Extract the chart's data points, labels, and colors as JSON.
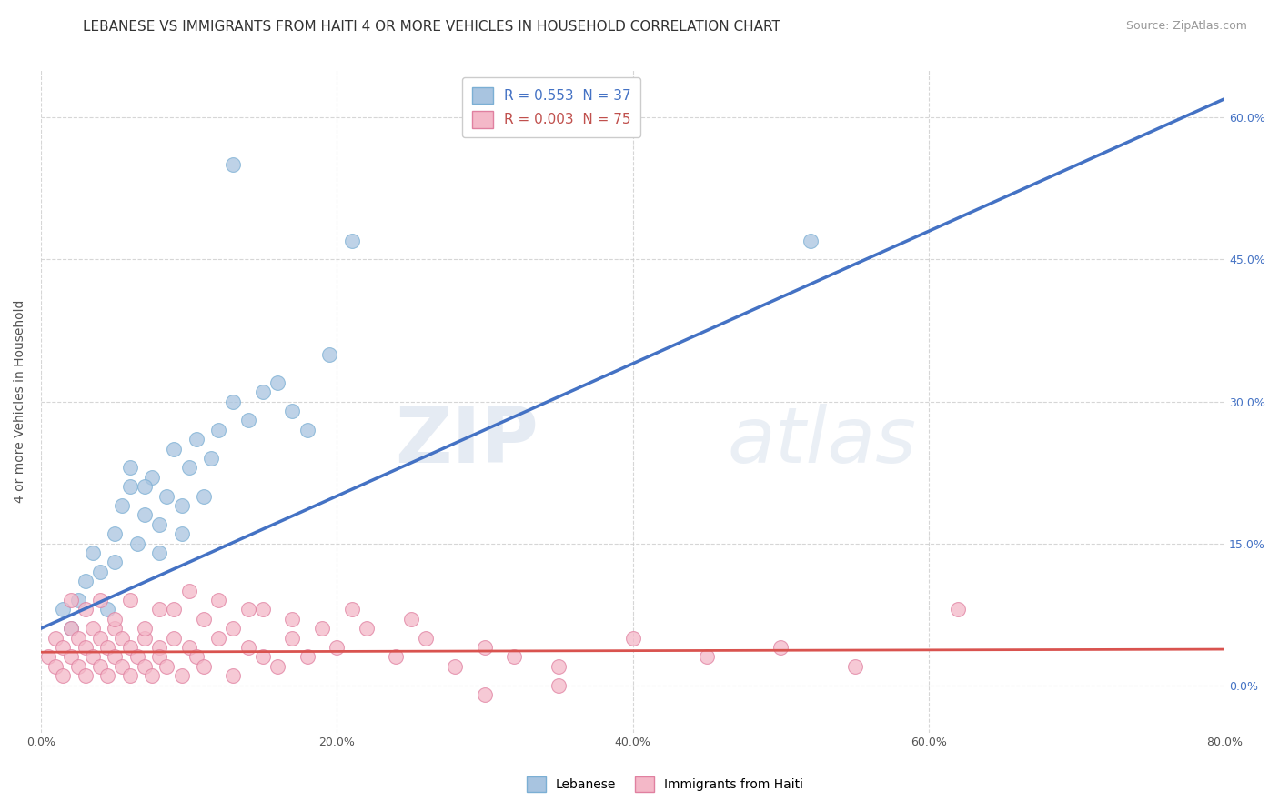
{
  "title": "LEBANESE VS IMMIGRANTS FROM HAITI 4 OR MORE VEHICLES IN HOUSEHOLD CORRELATION CHART",
  "source": "Source: ZipAtlas.com",
  "ylabel": "4 or more Vehicles in Household",
  "xlabel_labels": [
    "0.0%",
    "20.0%",
    "40.0%",
    "60.0%",
    "80.0%"
  ],
  "ylabel_labels": [
    "0.0%",
    "15.0%",
    "30.0%",
    "45.0%",
    "60.0%"
  ],
  "xlim": [
    0.0,
    80.0
  ],
  "ylim": [
    -5.0,
    65.0
  ],
  "legend_entries": [
    {
      "label": "R = 0.553  N = 37",
      "color": "#a8c4e0",
      "text_color": "#4472c4"
    },
    {
      "label": "R = 0.003  N = 75",
      "color": "#f4b8c8",
      "text_color": "#c0504d"
    }
  ],
  "blue_scatter_x": [
    1.5,
    2.0,
    2.5,
    3.0,
    3.5,
    4.0,
    4.5,
    5.0,
    5.0,
    5.5,
    6.0,
    6.5,
    7.0,
    7.5,
    8.0,
    8.5,
    9.0,
    9.5,
    10.0,
    10.5,
    11.0,
    11.5,
    12.0,
    13.0,
    14.0,
    16.0,
    17.0,
    18.0,
    19.5,
    21.0,
    13.0,
    15.0,
    52.0,
    7.0,
    6.0,
    8.0,
    9.5
  ],
  "blue_scatter_y": [
    8.0,
    6.0,
    9.0,
    11.0,
    14.0,
    12.0,
    8.0,
    16.0,
    13.0,
    19.0,
    21.0,
    15.0,
    18.0,
    22.0,
    17.0,
    20.0,
    25.0,
    19.0,
    23.0,
    26.0,
    20.0,
    24.0,
    27.0,
    30.0,
    28.0,
    32.0,
    29.0,
    27.0,
    35.0,
    47.0,
    55.0,
    31.0,
    47.0,
    21.0,
    23.0,
    14.0,
    16.0
  ],
  "pink_scatter_x": [
    0.5,
    1.0,
    1.0,
    1.5,
    1.5,
    2.0,
    2.0,
    2.5,
    2.5,
    3.0,
    3.0,
    3.5,
    3.5,
    4.0,
    4.0,
    4.5,
    4.5,
    5.0,
    5.0,
    5.5,
    5.5,
    6.0,
    6.0,
    6.5,
    7.0,
    7.0,
    7.5,
    8.0,
    8.0,
    8.5,
    9.0,
    9.5,
    10.0,
    10.5,
    11.0,
    12.0,
    13.0,
    14.0,
    15.0,
    16.0,
    17.0,
    18.0,
    20.0,
    22.0,
    24.0,
    26.0,
    28.0,
    30.0,
    32.0,
    35.0,
    40.0,
    45.0,
    50.0,
    55.0,
    62.0,
    3.0,
    5.0,
    7.0,
    9.0,
    11.0,
    13.0,
    15.0,
    17.0,
    19.0,
    21.0,
    25.0,
    30.0,
    35.0,
    2.0,
    4.0,
    6.0,
    8.0,
    10.0,
    12.0,
    14.0
  ],
  "pink_scatter_y": [
    3.0,
    2.0,
    5.0,
    1.0,
    4.0,
    3.0,
    6.0,
    2.0,
    5.0,
    1.0,
    4.0,
    3.0,
    6.0,
    2.0,
    5.0,
    1.0,
    4.0,
    3.0,
    6.0,
    2.0,
    5.0,
    1.0,
    4.0,
    3.0,
    2.0,
    5.0,
    1.0,
    4.0,
    3.0,
    2.0,
    5.0,
    1.0,
    4.0,
    3.0,
    2.0,
    5.0,
    1.0,
    4.0,
    3.0,
    2.0,
    5.0,
    3.0,
    4.0,
    6.0,
    3.0,
    5.0,
    2.0,
    4.0,
    3.0,
    2.0,
    5.0,
    3.0,
    4.0,
    2.0,
    8.0,
    8.0,
    7.0,
    6.0,
    8.0,
    7.0,
    6.0,
    8.0,
    7.0,
    6.0,
    8.0,
    7.0,
    -1.0,
    0.0,
    9.0,
    9.0,
    9.0,
    8.0,
    10.0,
    9.0,
    8.0
  ],
  "blue_line_x": [
    0.0,
    80.0
  ],
  "blue_line_y": [
    6.0,
    62.0
  ],
  "pink_line_x": [
    0.0,
    80.0
  ],
  "pink_line_y": [
    3.5,
    3.8
  ],
  "watermark_zip": "ZIP",
  "watermark_atlas": "atlas",
  "bg_color": "#ffffff",
  "grid_color": "#cccccc",
  "title_fontsize": 11,
  "axis_label_fontsize": 10,
  "tick_fontsize": 9,
  "legend_fontsize": 11,
  "source_fontsize": 9
}
